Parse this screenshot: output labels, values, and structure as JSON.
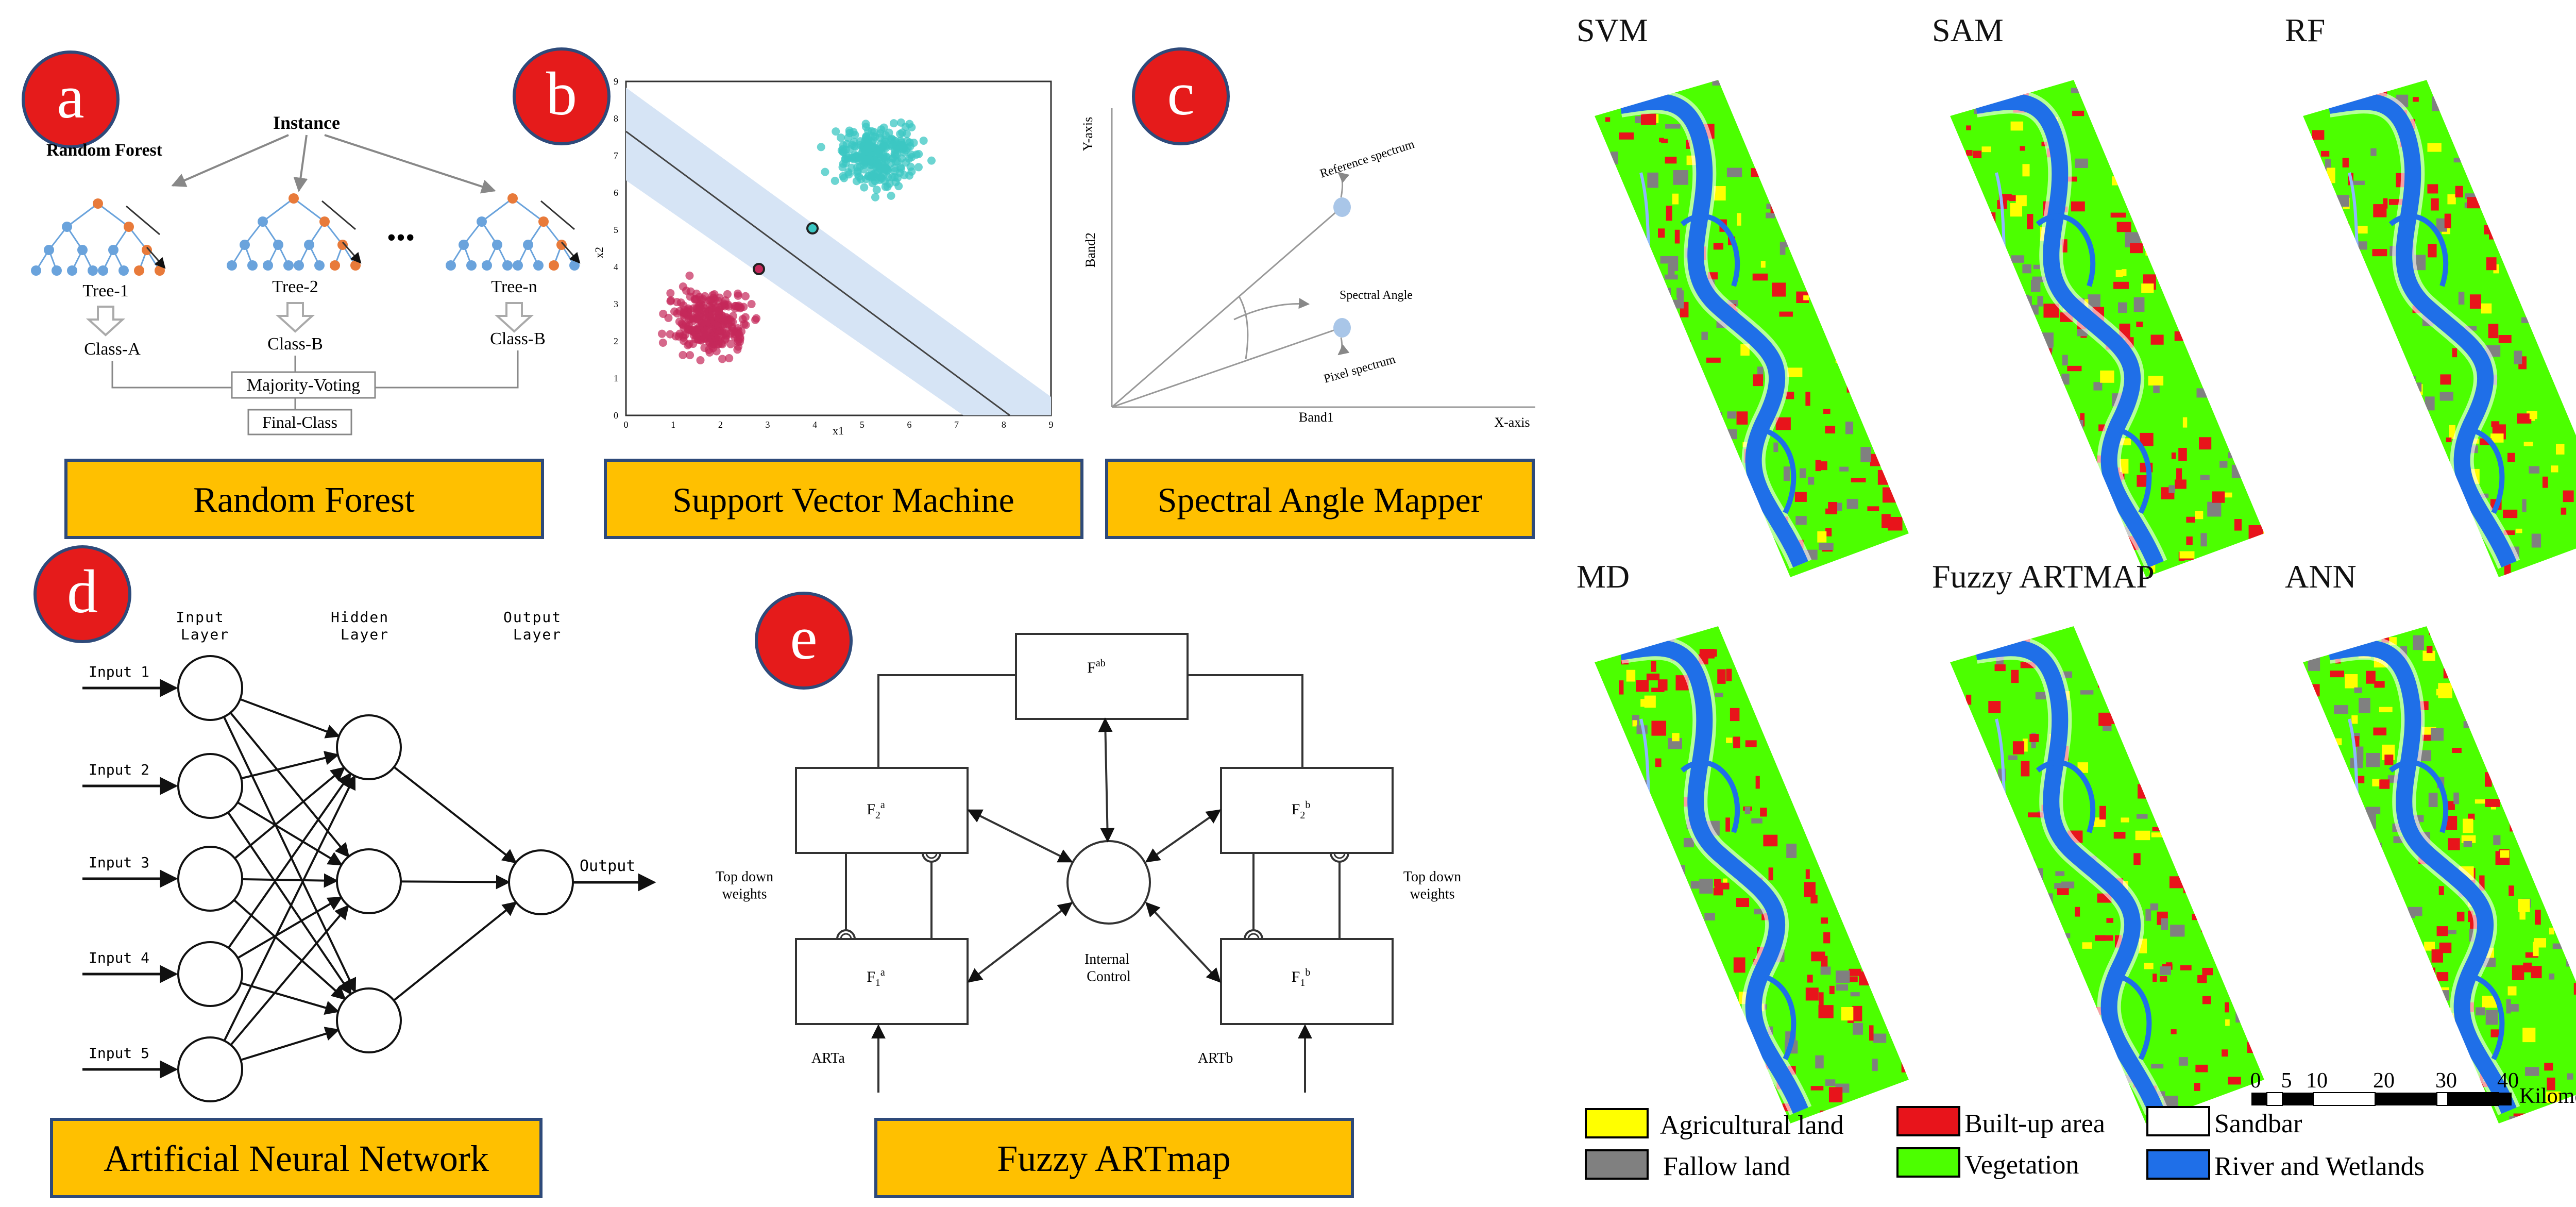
{
  "panels": {
    "a": {
      "letter": "a",
      "caption": "Random Forest",
      "title": "Random Forest",
      "root": "Instance",
      "dots": "•••",
      "trees": [
        {
          "name": "Tree-1",
          "cls": "Class-A"
        },
        {
          "name": "Tree-2",
          "cls": "Class-B"
        },
        {
          "name": "Tree-n",
          "cls": "Class-B"
        }
      ],
      "vote": "Majority-Voting",
      "final": "Final-Class"
    },
    "b": {
      "letter": "b",
      "caption": "Support Vector Machine",
      "xlabel": "x1",
      "ylabel": "x2",
      "xticks": [
        "0",
        "1",
        "2",
        "3",
        "4",
        "5",
        "6",
        "7",
        "8",
        "9"
      ],
      "yticks": [
        "0",
        "1",
        "2",
        "3",
        "4",
        "5",
        "6",
        "7",
        "8",
        "9"
      ]
    },
    "c": {
      "letter": "c",
      "caption": "Spectral Angle Mapper",
      "yaxis": "Y-axis",
      "xaxis": "X-axis",
      "band2": "Band2",
      "band1": "Band1",
      "ref": "Reference spectrum",
      "angle": "Spectral Angle",
      "pixel": "Pixel spectrum"
    },
    "d": {
      "letter": "d",
      "caption": "Artificial Neural Network",
      "layers": [
        "Input\nLayer",
        "Hidden\nLayer",
        "Output\nLayer"
      ],
      "inputs": [
        "Input 1",
        "Input 2",
        "Input 3",
        "Input 4",
        "Input 5"
      ],
      "output": "Output"
    },
    "e": {
      "letter": "e",
      "caption": "Fuzzy ARTmap",
      "fab": "F",
      "fab_sup": "ab",
      "f2a": "F",
      "f2a_sub": "2",
      "f2a_sup": "a",
      "f2b": "F",
      "f2b_sub": "2",
      "f2b_sup": "b",
      "f1a": "F",
      "f1a_sub": "1",
      "f1a_sup": "a",
      "f1b": "F",
      "f1b_sub": "1",
      "f1b_sup": "b",
      "tdw": "Top down\nweights",
      "control": "Internal\nControl",
      "arta": "ARTa",
      "artb": "ARTb"
    }
  },
  "maps": [
    {
      "title": "SVM"
    },
    {
      "title": "SAM"
    },
    {
      "title": "RF"
    },
    {
      "title": "MD"
    },
    {
      "title": "Fuzzy ARTMAP"
    },
    {
      "title": "ANN"
    }
  ],
  "scalebar": {
    "ticks": [
      "0",
      "5",
      "10",
      "20",
      "30",
      "40"
    ],
    "unit": "Kilometers"
  },
  "legend": [
    {
      "label": "Agricultural land",
      "color": "#ffff00"
    },
    {
      "label": "Built-up area",
      "color": "#e8141b"
    },
    {
      "label": "Sandbar",
      "color": "#ffffff"
    },
    {
      "label": "Fallow land",
      "color": "#808080"
    },
    {
      "label": "Vegetation",
      "color": "#4cff00"
    },
    {
      "label": "River and Wetlands",
      "color": "#1f6fe8"
    }
  ],
  "colors": {
    "badge": "#e51b1b",
    "caption_bg": "#ffc000",
    "caption_border": "#2e4a7a",
    "svm_band": "#d6e4f5",
    "cluster_a": "#3cc7c3",
    "cluster_b": "#c4285a",
    "tree_node": "#6aa3dc",
    "tree_leaf": "#e87a3a",
    "sam_point": "#a9c6e8"
  }
}
